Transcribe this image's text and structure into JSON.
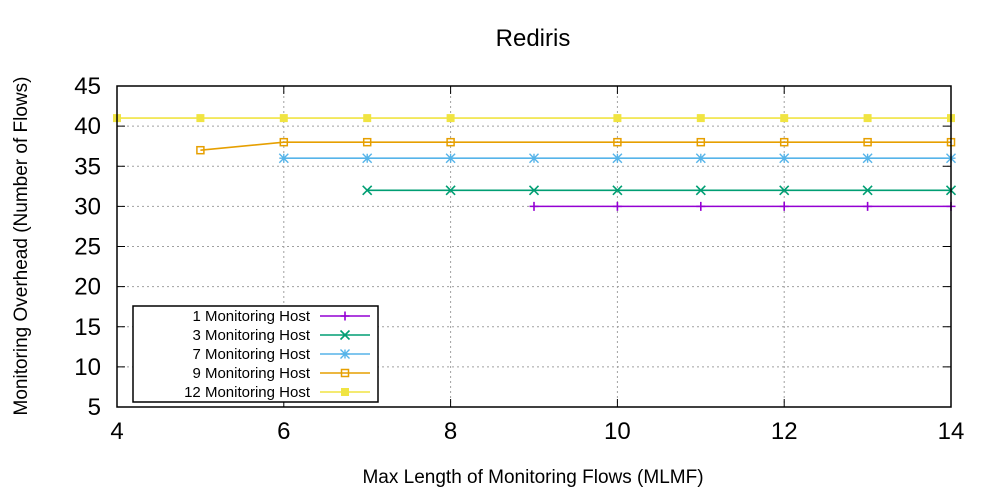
{
  "chart_data": {
    "type": "line",
    "title": "Rediris",
    "xlabel": "Max Length of Monitoring Flows (MLMF)",
    "ylabel": "Monitoring Overhead (Number of Flows)",
    "xlim": [
      4,
      14
    ],
    "ylim": [
      5,
      45
    ],
    "xticks": [
      4,
      6,
      8,
      10,
      12,
      14
    ],
    "yticks": [
      5,
      10,
      15,
      20,
      25,
      30,
      35,
      40,
      45
    ],
    "grid": true,
    "legend_position": "bottom-left",
    "series": [
      {
        "name": "1 Monitoring Host",
        "color": "#9400d3",
        "marker": "plus",
        "x": [
          9,
          10,
          11,
          12,
          13,
          14
        ],
        "y": [
          30,
          30,
          30,
          30,
          30,
          30
        ]
      },
      {
        "name": "3 Monitoring Host",
        "color": "#009e73",
        "marker": "cross",
        "x": [
          7,
          8,
          9,
          10,
          11,
          12,
          13,
          14
        ],
        "y": [
          32,
          32,
          32,
          32,
          32,
          32,
          32,
          32
        ]
      },
      {
        "name": "7 Monitoring Host",
        "color": "#56b4e9",
        "marker": "star",
        "x": [
          6,
          7,
          8,
          9,
          10,
          11,
          12,
          13,
          14
        ],
        "y": [
          36,
          36,
          36,
          36,
          36,
          36,
          36,
          36,
          36
        ]
      },
      {
        "name": "9 Monitoring Host",
        "color": "#e69f00",
        "marker": "open-square",
        "x": [
          5,
          6,
          7,
          8,
          10,
          11,
          12,
          13,
          14
        ],
        "y": [
          37,
          38,
          38,
          38,
          38,
          38,
          38,
          38,
          38
        ]
      },
      {
        "name": "12 Monitoring Host",
        "color": "#f0e442",
        "marker": "filled-square",
        "x": [
          4,
          5,
          6,
          7,
          8,
          10,
          11,
          12,
          13,
          14
        ],
        "y": [
          41,
          41,
          41,
          41,
          41,
          41,
          41,
          41,
          41,
          41
        ]
      }
    ]
  }
}
